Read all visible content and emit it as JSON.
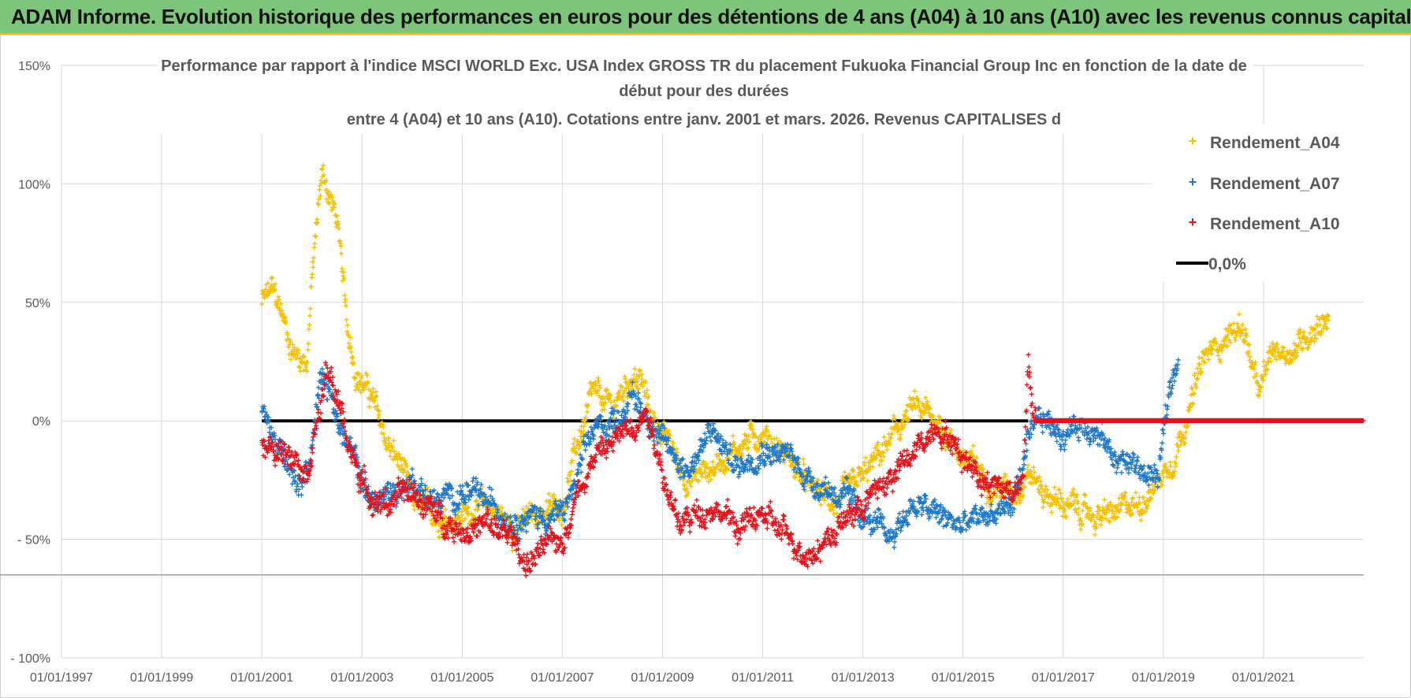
{
  "header": {
    "title": "ADAM Informe. Evolution historique des performances en euros pour des détentions de 4 ans (A04) à 10 ans (A10) avec les revenus connus capitalisés"
  },
  "colors": {
    "a04": "#f5c000",
    "a07": "#1f78c8",
    "a10": "#e8101a",
    "zero": "#000000",
    "banner": "#7dc57a"
  },
  "chart_data": {
    "type": "scatter",
    "title_lines": [
      "Performance par rapport à l'indice MSCI WORLD Exc. USA Index GROSS TR  du placement Fukuoka Financial Group Inc en fonction de la date de",
      "début pour des durées",
      "entre 4 (A04) et 10 ans (A10). Cotations entre janv. 2001 et mars. 2026. Revenus CAPITALISES d"
    ],
    "xlim": [
      1997.0,
      2023.0
    ],
    "ylim": [
      -100,
      150
    ],
    "x_ticks": [
      1997,
      1999,
      2001,
      2003,
      2005,
      2007,
      2009,
      2011,
      2013,
      2015,
      2017,
      2019,
      2021
    ],
    "x_tick_labels": [
      "01/01/1997",
      "01/01/1999",
      "01/01/2001",
      "01/01/2003",
      "01/01/2005",
      "01/01/2007",
      "01/01/2009",
      "01/01/2011",
      "01/01/2013",
      "01/01/2015",
      "01/01/2017",
      "01/01/2019",
      "01/01/2021"
    ],
    "y_ticks": [
      -100,
      -50,
      0,
      50,
      100,
      150
    ],
    "y_tick_labels": [
      "- 100%",
      "- 50%",
      "0%",
      "50%",
      "100%",
      "150%"
    ],
    "legend": [
      {
        "name": "Rendement_A04",
        "marker": "+"
      },
      {
        "name": "Rendement_A07",
        "marker": "+"
      },
      {
        "name": "Rendement_A10",
        "marker": "+"
      },
      {
        "name": "0,0%",
        "marker": "line"
      }
    ],
    "series": [
      {
        "name": "Rendement_A04",
        "color": "a04",
        "x_range": [
          2001.0,
          2022.3
        ],
        "keypoints": [
          [
            2001.0,
            50
          ],
          [
            2001.2,
            55
          ],
          [
            2001.4,
            45
          ],
          [
            2001.6,
            30
          ],
          [
            2001.9,
            25
          ],
          [
            2002.0,
            60
          ],
          [
            2002.2,
            105
          ],
          [
            2002.35,
            95
          ],
          [
            2002.5,
            85
          ],
          [
            2002.7,
            40
          ],
          [
            2002.9,
            20
          ],
          [
            2003.2,
            10
          ],
          [
            2003.5,
            -10
          ],
          [
            2003.8,
            -20
          ],
          [
            2004.0,
            -35
          ],
          [
            2004.5,
            -40
          ],
          [
            2005.0,
            -40
          ],
          [
            2005.5,
            -35
          ],
          [
            2006.0,
            -45
          ],
          [
            2006.5,
            -40
          ],
          [
            2007.0,
            -35
          ],
          [
            2007.3,
            -10
          ],
          [
            2007.6,
            10
          ],
          [
            2008.0,
            5
          ],
          [
            2008.4,
            20
          ],
          [
            2008.6,
            15
          ],
          [
            2008.8,
            0
          ],
          [
            2009.0,
            -5
          ],
          [
            2009.5,
            -25
          ],
          [
            2010.0,
            -20
          ],
          [
            2010.5,
            -10
          ],
          [
            2011.0,
            -5
          ],
          [
            2011.5,
            -15
          ],
          [
            2012.0,
            -30
          ],
          [
            2012.5,
            -35
          ],
          [
            2013.0,
            -25
          ],
          [
            2013.5,
            -10
          ],
          [
            2014.0,
            5
          ],
          [
            2014.5,
            0
          ],
          [
            2015.0,
            -15
          ],
          [
            2015.5,
            -25
          ],
          [
            2016.0,
            -30
          ],
          [
            2016.3,
            -20
          ],
          [
            2016.6,
            -30
          ],
          [
            2017.0,
            -35
          ],
          [
            2017.5,
            -40
          ],
          [
            2018.0,
            -40
          ],
          [
            2018.5,
            -35
          ],
          [
            2018.9,
            -25
          ],
          [
            2019.2,
            -15
          ],
          [
            2019.5,
            5
          ],
          [
            2019.8,
            25
          ],
          [
            2020.2,
            35
          ],
          [
            2020.6,
            40
          ],
          [
            2020.9,
            10
          ],
          [
            2021.2,
            30
          ],
          [
            2021.6,
            30
          ],
          [
            2022.0,
            40
          ],
          [
            2022.3,
            45
          ]
        ]
      },
      {
        "name": "Rendement_A07",
        "color": "a07",
        "x_range": [
          2001.0,
          2019.3
        ],
        "keypoints": [
          [
            2001.0,
            5
          ],
          [
            2001.3,
            -10
          ],
          [
            2001.6,
            -25
          ],
          [
            2001.8,
            -30
          ],
          [
            2002.0,
            -10
          ],
          [
            2002.2,
            25
          ],
          [
            2002.4,
            10
          ],
          [
            2002.6,
            -5
          ],
          [
            2002.9,
            -20
          ],
          [
            2003.2,
            -35
          ],
          [
            2003.6,
            -30
          ],
          [
            2004.0,
            -25
          ],
          [
            2004.5,
            -35
          ],
          [
            2005.0,
            -30
          ],
          [
            2005.5,
            -35
          ],
          [
            2006.0,
            -40
          ],
          [
            2006.5,
            -40
          ],
          [
            2007.0,
            -40
          ],
          [
            2007.3,
            -25
          ],
          [
            2007.6,
            -5
          ],
          [
            2008.0,
            0
          ],
          [
            2008.4,
            10
          ],
          [
            2008.8,
            0
          ],
          [
            2009.0,
            -10
          ],
          [
            2009.5,
            -20
          ],
          [
            2010.0,
            -5
          ],
          [
            2010.5,
            -20
          ],
          [
            2011.0,
            -10
          ],
          [
            2011.5,
            -15
          ],
          [
            2012.0,
            -25
          ],
          [
            2012.5,
            -30
          ],
          [
            2013.0,
            -40
          ],
          [
            2013.5,
            -50
          ],
          [
            2014.0,
            -35
          ],
          [
            2014.5,
            -40
          ],
          [
            2015.0,
            -45
          ],
          [
            2015.5,
            -40
          ],
          [
            2016.0,
            -35
          ],
          [
            2016.3,
            -10
          ],
          [
            2016.6,
            0
          ],
          [
            2017.0,
            -5
          ],
          [
            2017.5,
            0
          ],
          [
            2018.0,
            -15
          ],
          [
            2018.5,
            -20
          ],
          [
            2018.9,
            -25
          ],
          [
            2019.1,
            10
          ],
          [
            2019.3,
            30
          ]
        ]
      },
      {
        "name": "Rendement_A10",
        "color": "a10",
        "x_range": [
          2001.0,
          2023.0
        ],
        "keypoints": [
          [
            2001.0,
            -10
          ],
          [
            2001.3,
            -15
          ],
          [
            2001.6,
            -10
          ],
          [
            2001.9,
            -20
          ],
          [
            2002.1,
            0
          ],
          [
            2002.3,
            20
          ],
          [
            2002.5,
            10
          ],
          [
            2002.8,
            -15
          ],
          [
            2003.1,
            -30
          ],
          [
            2003.5,
            -35
          ],
          [
            2004.0,
            -30
          ],
          [
            2004.5,
            -40
          ],
          [
            2005.0,
            -45
          ],
          [
            2005.5,
            -45
          ],
          [
            2006.0,
            -50
          ],
          [
            2006.3,
            -60
          ],
          [
            2006.6,
            -55
          ],
          [
            2007.0,
            -50
          ],
          [
            2007.3,
            -30
          ],
          [
            2007.6,
            -15
          ],
          [
            2008.0,
            -10
          ],
          [
            2008.4,
            0
          ],
          [
            2008.7,
            5
          ],
          [
            2009.0,
            -20
          ],
          [
            2009.3,
            -45
          ],
          [
            2009.6,
            -40
          ],
          [
            2010.0,
            -35
          ],
          [
            2010.5,
            -45
          ],
          [
            2011.0,
            -40
          ],
          [
            2011.5,
            -50
          ],
          [
            2012.0,
            -55
          ],
          [
            2012.5,
            -45
          ],
          [
            2013.0,
            -35
          ],
          [
            2013.5,
            -25
          ],
          [
            2014.0,
            -15
          ],
          [
            2014.5,
            0
          ],
          [
            2015.0,
            -15
          ],
          [
            2015.5,
            -25
          ],
          [
            2016.0,
            -30
          ],
          [
            2016.2,
            -20
          ],
          [
            2016.3,
            25
          ],
          [
            2016.4,
            0
          ],
          [
            2017.0,
            0
          ],
          [
            2023.0,
            0
          ]
        ]
      }
    ],
    "reference_line": {
      "name": "0,0%",
      "y": 0,
      "x_range": [
        2001.0,
        2016.3
      ]
    }
  }
}
